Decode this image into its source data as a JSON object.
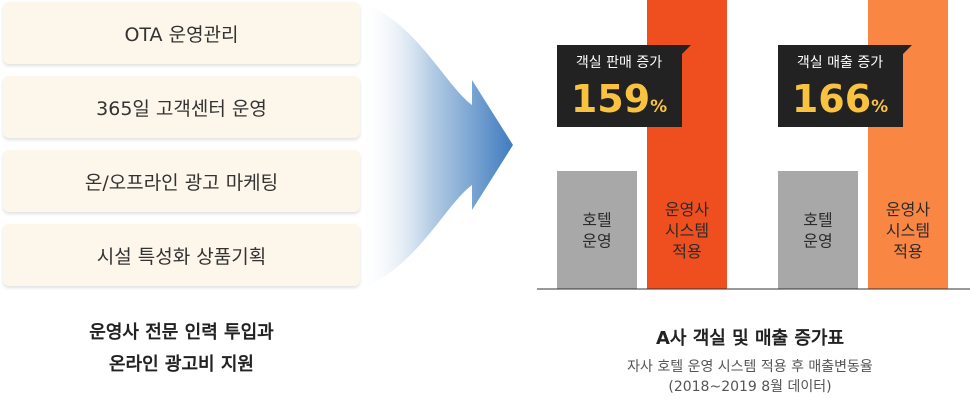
{
  "services": [
    {
      "label": "OTA 운영관리"
    },
    {
      "label": "365일 고객센터 운영"
    },
    {
      "label": "온/오프라인 광고 마케팅"
    },
    {
      "label": "시설 특성화 상품기획"
    }
  ],
  "left_caption": {
    "line1": "운영사 전문 인력 투입과",
    "line2": "온라인 광고비 지원"
  },
  "chart_title": "A사 객실 및 매출 증가표",
  "chart_subtitle": {
    "line1": "자사 호텔 운영 시스템 적용 후 매출변동율",
    "line2": "(2018~2019 8월 데이터)"
  },
  "chart_data": {
    "type": "bar",
    "groups": [
      {
        "name": "객실 판매 증가",
        "value_label": "159",
        "unit": "%",
        "bars": [
          {
            "label": "호텔 운영",
            "lines": [
              "호텔",
              "운영"
            ],
            "value": 100,
            "color": "#a8a8a8"
          },
          {
            "label": "운영사 시스템 적용",
            "lines": [
              "운영사",
              "시스템",
              "적용"
            ],
            "value": 259,
            "color": "#ef4f1f"
          }
        ]
      },
      {
        "name": "객실 매출 증가",
        "value_label": "166",
        "unit": "%",
        "bars": [
          {
            "label": "호텔 운영",
            "lines": [
              "호텔",
              "운영"
            ],
            "value": 100,
            "color": "#a8a8a8"
          },
          {
            "label": "운영사 시스템 적용",
            "lines": [
              "운영사",
              "시스템",
              "적용"
            ],
            "value": 266,
            "color": "#f98643"
          }
        ]
      }
    ],
    "text_color_light": "#2b2b2b",
    "badge_color": "#222222",
    "badge_value_color": "#f9c33f"
  }
}
